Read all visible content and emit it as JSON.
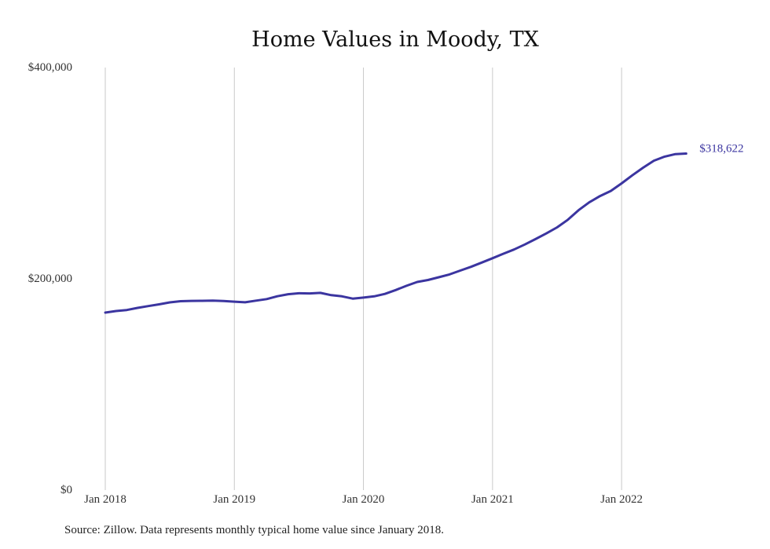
{
  "chart_data": {
    "type": "line",
    "title": "Home Values in Moody, TX",
    "xlabel": "",
    "ylabel": "",
    "ylim": [
      0,
      400000
    ],
    "y_ticks": [
      {
        "value": 0,
        "label": "$0"
      },
      {
        "value": 200000,
        "label": "$200,000"
      },
      {
        "value": 400000,
        "label": "$400,000"
      }
    ],
    "x_ticks": [
      {
        "value": "2018-01",
        "label": "Jan 2018"
      },
      {
        "value": "2019-01",
        "label": "Jan 2019"
      },
      {
        "value": "2020-01",
        "label": "Jan 2020"
      },
      {
        "value": "2021-01",
        "label": "Jan 2021"
      },
      {
        "value": "2022-01",
        "label": "Jan 2022"
      }
    ],
    "grid": "vertical",
    "series_color": "#3b35a0",
    "end_label": "$318,622",
    "x": [
      "2018-01",
      "2018-02",
      "2018-03",
      "2018-04",
      "2018-05",
      "2018-06",
      "2018-07",
      "2018-08",
      "2018-09",
      "2018-10",
      "2018-11",
      "2018-12",
      "2019-01",
      "2019-02",
      "2019-03",
      "2019-04",
      "2019-05",
      "2019-06",
      "2019-07",
      "2019-08",
      "2019-09",
      "2019-10",
      "2019-11",
      "2019-12",
      "2020-01",
      "2020-02",
      "2020-03",
      "2020-04",
      "2020-05",
      "2020-06",
      "2020-07",
      "2020-08",
      "2020-09",
      "2020-10",
      "2020-11",
      "2020-12",
      "2021-01",
      "2021-02",
      "2021-03",
      "2021-04",
      "2021-05",
      "2021-06",
      "2021-07",
      "2021-08",
      "2021-09",
      "2021-10",
      "2021-11",
      "2021-12",
      "2022-01",
      "2022-02",
      "2022-03",
      "2022-04",
      "2022-05",
      "2022-06",
      "2022-07"
    ],
    "series": [
      {
        "values": [
          168000,
          169500,
          170500,
          172500,
          174200,
          175800,
          177700,
          178800,
          179100,
          179200,
          179300,
          179000,
          178400,
          177800,
          179300,
          180800,
          183500,
          185400,
          186300,
          186200,
          186700,
          184500,
          183400,
          181300,
          182200,
          183400,
          185700,
          189400,
          193400,
          197000,
          198900,
          201500,
          204200,
          207800,
          211400,
          215400,
          219500,
          223700,
          227700,
          232500,
          237600,
          243000,
          248700,
          255900,
          265000,
          272400,
          278400,
          283200,
          290300,
          298000,
          305200,
          311800,
          315700,
          318100,
          318622
        ]
      }
    ]
  },
  "footer": {
    "source": "Source: Zillow. Data represents monthly typical home value since January 2018."
  }
}
